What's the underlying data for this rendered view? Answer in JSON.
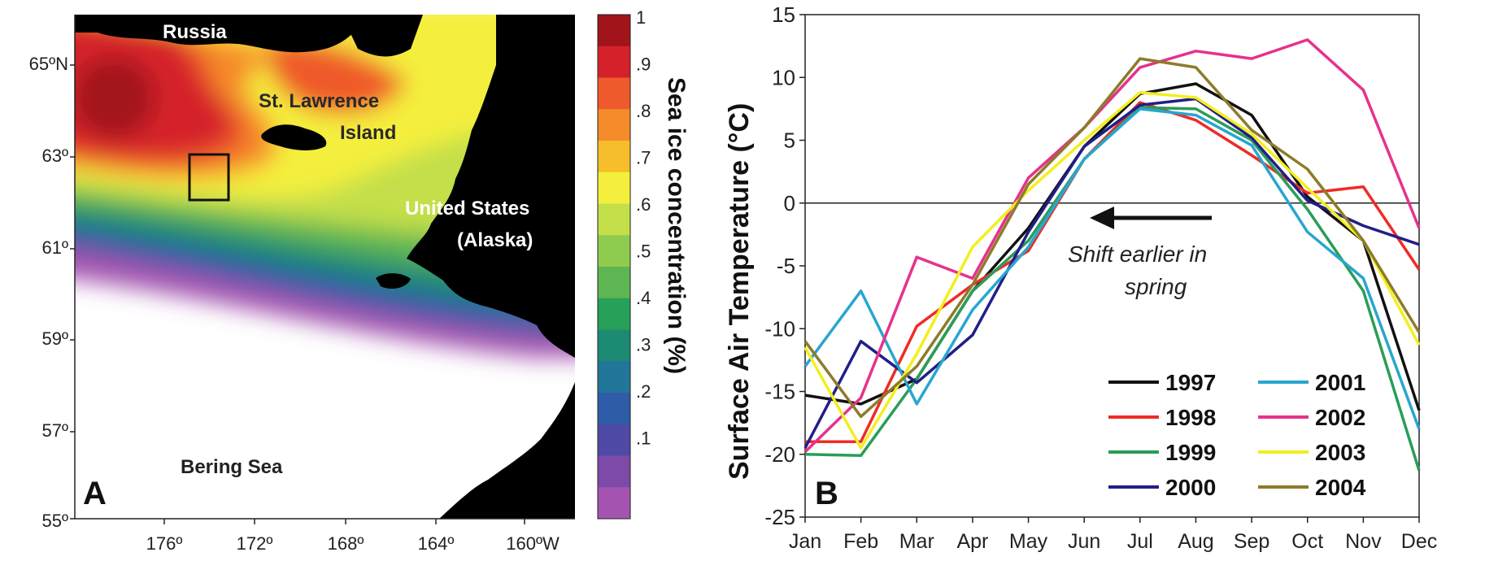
{
  "panelA": {
    "panel_label": "A",
    "lat_ticks": [
      "65ºN",
      "63º",
      "61º",
      "59º",
      "57º",
      "55º"
    ],
    "lon_ticks": [
      "176º",
      "172º",
      "168º",
      "164º",
      "160ºW"
    ],
    "labels": {
      "russia": "Russia",
      "st_lawrence_1": "St. Lawrence",
      "st_lawrence_2": "Island",
      "us_1": "United States",
      "us_2": "(Alaska)",
      "bering": "Bering Sea"
    },
    "colorbar": {
      "title": "Sea ice concentration (%)",
      "ticks": [
        "1",
        ".9",
        ".8",
        ".7",
        ".6",
        ".5",
        ".4",
        ".3",
        ".2",
        ".1"
      ],
      "colors": [
        "#a2141b",
        "#d5212a",
        "#ef5a2c",
        "#f58b2a",
        "#f6be2b",
        "#f4ef3c",
        "#c3df4a",
        "#8fcb4e",
        "#5db652",
        "#27a05a",
        "#1d8a74",
        "#227699",
        "#2e5ca8",
        "#4f4aa6",
        "#7d4aa8",
        "#a454b0"
      ]
    }
  },
  "chart_data": {
    "type": "line",
    "panel_label": "B",
    "ylabel": "Surface Air Temperature (°C)",
    "xlabel": "",
    "categories": [
      "Jan",
      "Feb",
      "Mar",
      "Apr",
      "May",
      "Jun",
      "Jul",
      "Aug",
      "Sep",
      "Oct",
      "Nov",
      "Dec"
    ],
    "ylim": [
      -25,
      15
    ],
    "yticks": [
      "15",
      "10",
      "5",
      "0",
      "-5",
      "-10",
      "-15",
      "-20",
      "-25"
    ],
    "annotation_1": "Shift earlier in",
    "annotation_2": "spring",
    "series": [
      {
        "name": "1997",
        "color": "#111111",
        "values": [
          -15.3,
          -16,
          -14,
          -7,
          -2,
          4.5,
          8.7,
          9.5,
          7,
          0.5,
          -3,
          -16.5
        ]
      },
      {
        "name": "1998",
        "color": "#ef2b25",
        "values": [
          -19,
          -19,
          -9.8,
          -6.5,
          -3.8,
          3.5,
          8,
          6.6,
          3.8,
          0.8,
          1.3,
          -5.3
        ]
      },
      {
        "name": "1999",
        "color": "#2a9d58",
        "values": [
          -20,
          -20.1,
          -14,
          -7,
          -3,
          3.5,
          7.6,
          7.5,
          5,
          -0.5,
          -7,
          -21.3
        ]
      },
      {
        "name": "2000",
        "color": "#221e87",
        "values": [
          -19.5,
          -11,
          -14.3,
          -10.5,
          -2.3,
          4.5,
          7.8,
          8.3,
          5.2,
          0.2,
          -1.8,
          -3.3
        ]
      },
      {
        "name": "2001",
        "color": "#28a6cf",
        "values": [
          -13,
          -7,
          -16,
          -8.5,
          -3.5,
          3.5,
          7.5,
          7,
          4.6,
          -2.3,
          -6,
          -18
        ]
      },
      {
        "name": "2002",
        "color": "#e6328c",
        "values": [
          -19.8,
          -15.5,
          -4.3,
          -6,
          2,
          6,
          10.8,
          12.1,
          11.5,
          13,
          9,
          -2
        ]
      },
      {
        "name": "2003",
        "color": "#f2ef1e",
        "values": [
          -11.5,
          -19.5,
          -12,
          -3.5,
          1,
          5,
          8.8,
          8.4,
          5.5,
          1.2,
          -3,
          -11.3
        ]
      },
      {
        "name": "2004",
        "color": "#8d7b2a",
        "values": [
          -11,
          -17,
          -13,
          -6.5,
          1.5,
          6,
          11.5,
          10.8,
          5.8,
          2.7,
          -3,
          -10.3
        ]
      }
    ]
  }
}
